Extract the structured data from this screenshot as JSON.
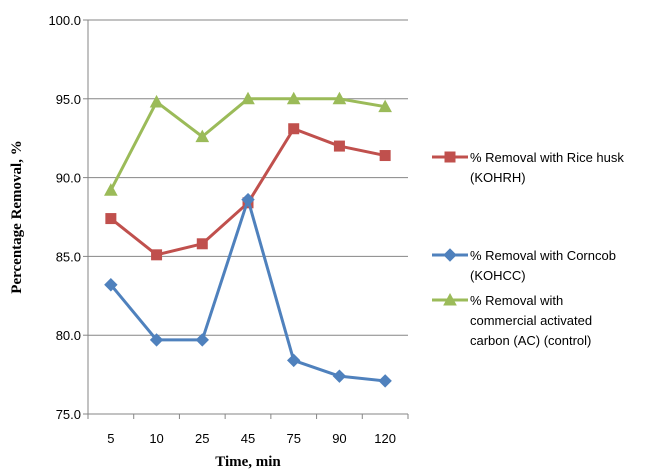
{
  "chart_data": {
    "type": "line",
    "title": "",
    "xlabel": "Time, min",
    "ylabel": "Percentage Removal, %",
    "categories": [
      "5",
      "10",
      "25",
      "45",
      "75",
      "90",
      "120"
    ],
    "ylim": [
      75,
      100
    ],
    "yticks": [
      "75.0",
      "80.0",
      "85.0",
      "90.0",
      "95.0",
      "100.0"
    ],
    "grid": "horizontal",
    "legend_position": "right",
    "series": [
      {
        "name": "% Removal with Rice husk (KOHRH)",
        "legend_lines": [
          "% Removal with Rice husk",
          "(KOHRH)"
        ],
        "color": "#c0504d",
        "marker": "square",
        "values": [
          87.4,
          85.1,
          85.8,
          88.4,
          93.1,
          92.0,
          91.4
        ]
      },
      {
        "name": "% Removal with Corncob (KOHCC)",
        "legend_lines": [
          "% Removal with Corncob",
          "(KOHCC)"
        ],
        "color": "#4f81bd",
        "marker": "diamond",
        "values": [
          83.2,
          79.7,
          79.7,
          88.6,
          78.4,
          77.4,
          77.1
        ]
      },
      {
        "name": "% Removal with commercial activated carbon (AC) (control)",
        "legend_lines": [
          "% Removal with",
          "commercial  activated",
          "carbon (AC) (control)"
        ],
        "color": "#9bbb59",
        "marker": "triangle",
        "values": [
          89.2,
          94.8,
          92.6,
          95.0,
          95.0,
          95.0,
          94.5
        ]
      }
    ]
  }
}
